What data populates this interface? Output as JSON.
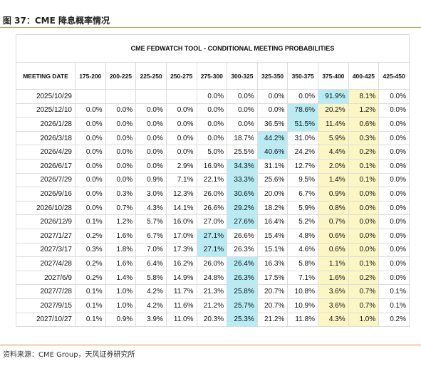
{
  "header": {
    "title": "图 37：CME 降息概率情况"
  },
  "table": {
    "title": "CME FEDWATCH TOOL - CONDITIONAL MEETING PROBABILITIES",
    "columns": [
      "MEETING DATE",
      "175-200",
      "200-225",
      "225-250",
      "250-275",
      "275-300",
      "300-325",
      "325-350",
      "350-375",
      "375-400",
      "400-425",
      "425-450"
    ],
    "rows": [
      [
        "2025/10/29",
        null,
        null,
        null,
        null,
        "0.0%",
        "0.0%",
        "0.0%",
        "0.0%",
        "91.9%",
        "8.1%",
        "0.0%"
      ],
      [
        "2025/12/10",
        "0.0%",
        "0.0%",
        "0.0%",
        "0.0%",
        "0.0%",
        "0.0%",
        "0.0%",
        "78.6%",
        "20.2%",
        "1.2%",
        "0.0%"
      ],
      [
        "2026/1/28",
        "0.0%",
        "0.0%",
        "0.0%",
        "0.0%",
        "0.0%",
        "0.0%",
        "36.5%",
        "51.5%",
        "11.4%",
        "0.6%",
        "0.0%"
      ],
      [
        "2026/3/18",
        "0.0%",
        "0.0%",
        "0.0%",
        "0.0%",
        "0.0%",
        "18.7%",
        "44.2%",
        "31.0%",
        "5.9%",
        "0.3%",
        "0.0%"
      ],
      [
        "2026/4/29",
        "0.0%",
        "0.0%",
        "0.0%",
        "0.0%",
        "5.0%",
        "25.5%",
        "40.6%",
        "24.2%",
        "4.4%",
        "0.2%",
        "0.0%"
      ],
      [
        "2026/6/17",
        "0.0%",
        "0.0%",
        "0.0%",
        "2.9%",
        "16.9%",
        "34.3%",
        "31.1%",
        "12.7%",
        "2.0%",
        "0.1%",
        "0.0%"
      ],
      [
        "2026/7/29",
        "0.0%",
        "0.0%",
        "0.9%",
        "7.1%",
        "22.1%",
        "33.3%",
        "25.6%",
        "9.5%",
        "1.4%",
        "0.1%",
        "0.0%"
      ],
      [
        "2026/9/16",
        "0.0%",
        "0.3%",
        "3.0%",
        "12.3%",
        "26.0%",
        "30.6%",
        "20.0%",
        "6.7%",
        "0.9%",
        "0.0%",
        "0.0%"
      ],
      [
        "2026/10/28",
        "0.0%",
        "0.7%",
        "4.3%",
        "14.1%",
        "26.6%",
        "29.2%",
        "18.2%",
        "5.9%",
        "0.8%",
        "0.0%",
        "0.0%"
      ],
      [
        "2026/12/9",
        "0.1%",
        "1.2%",
        "5.7%",
        "16.0%",
        "27.0%",
        "27.6%",
        "16.4%",
        "5.2%",
        "0.7%",
        "0.0%",
        "0.0%"
      ],
      [
        "2027/1/27",
        "0.2%",
        "1.6%",
        "6.7%",
        "17.0%",
        "27.1%",
        "26.6%",
        "15.4%",
        "4.8%",
        "0.6%",
        "0.0%",
        "0.0%"
      ],
      [
        "2027/3/17",
        "0.3%",
        "1.8%",
        "7.0%",
        "17.3%",
        "27.1%",
        "26.3%",
        "15.1%",
        "4.6%",
        "0.6%",
        "0.0%",
        "0.0%"
      ],
      [
        "2027/4/28",
        "0.2%",
        "1.6%",
        "6.4%",
        "16.2%",
        "26.0%",
        "26.4%",
        "16.3%",
        "5.8%",
        "1.1%",
        "0.1%",
        "0.0%"
      ],
      [
        "2027/6/9",
        "0.2%",
        "1.4%",
        "5.8%",
        "14.9%",
        "24.8%",
        "26.3%",
        "17.5%",
        "7.1%",
        "1.6%",
        "0.2%",
        "0.0%"
      ],
      [
        "2027/7/28",
        "0.1%",
        "1.0%",
        "4.2%",
        "11.7%",
        "21.3%",
        "25.8%",
        "20.7%",
        "10.8%",
        "3.6%",
        "0.7%",
        "0.1%"
      ],
      [
        "2027/9/15",
        "0.1%",
        "1.0%",
        "4.2%",
        "11.6%",
        "21.2%",
        "25.7%",
        "20.7%",
        "10.9%",
        "3.6%",
        "0.7%",
        "0.1%"
      ],
      [
        "2027/10/27",
        "0.1%",
        "0.9%",
        "3.9%",
        "11.0%",
        "20.3%",
        "25.3%",
        "21.2%",
        "11.8%",
        "4.3%",
        "1.0%",
        "0.2%"
      ]
    ]
  },
  "footer": {
    "source": "资料来源：CME Group，天风证券研究所"
  }
}
